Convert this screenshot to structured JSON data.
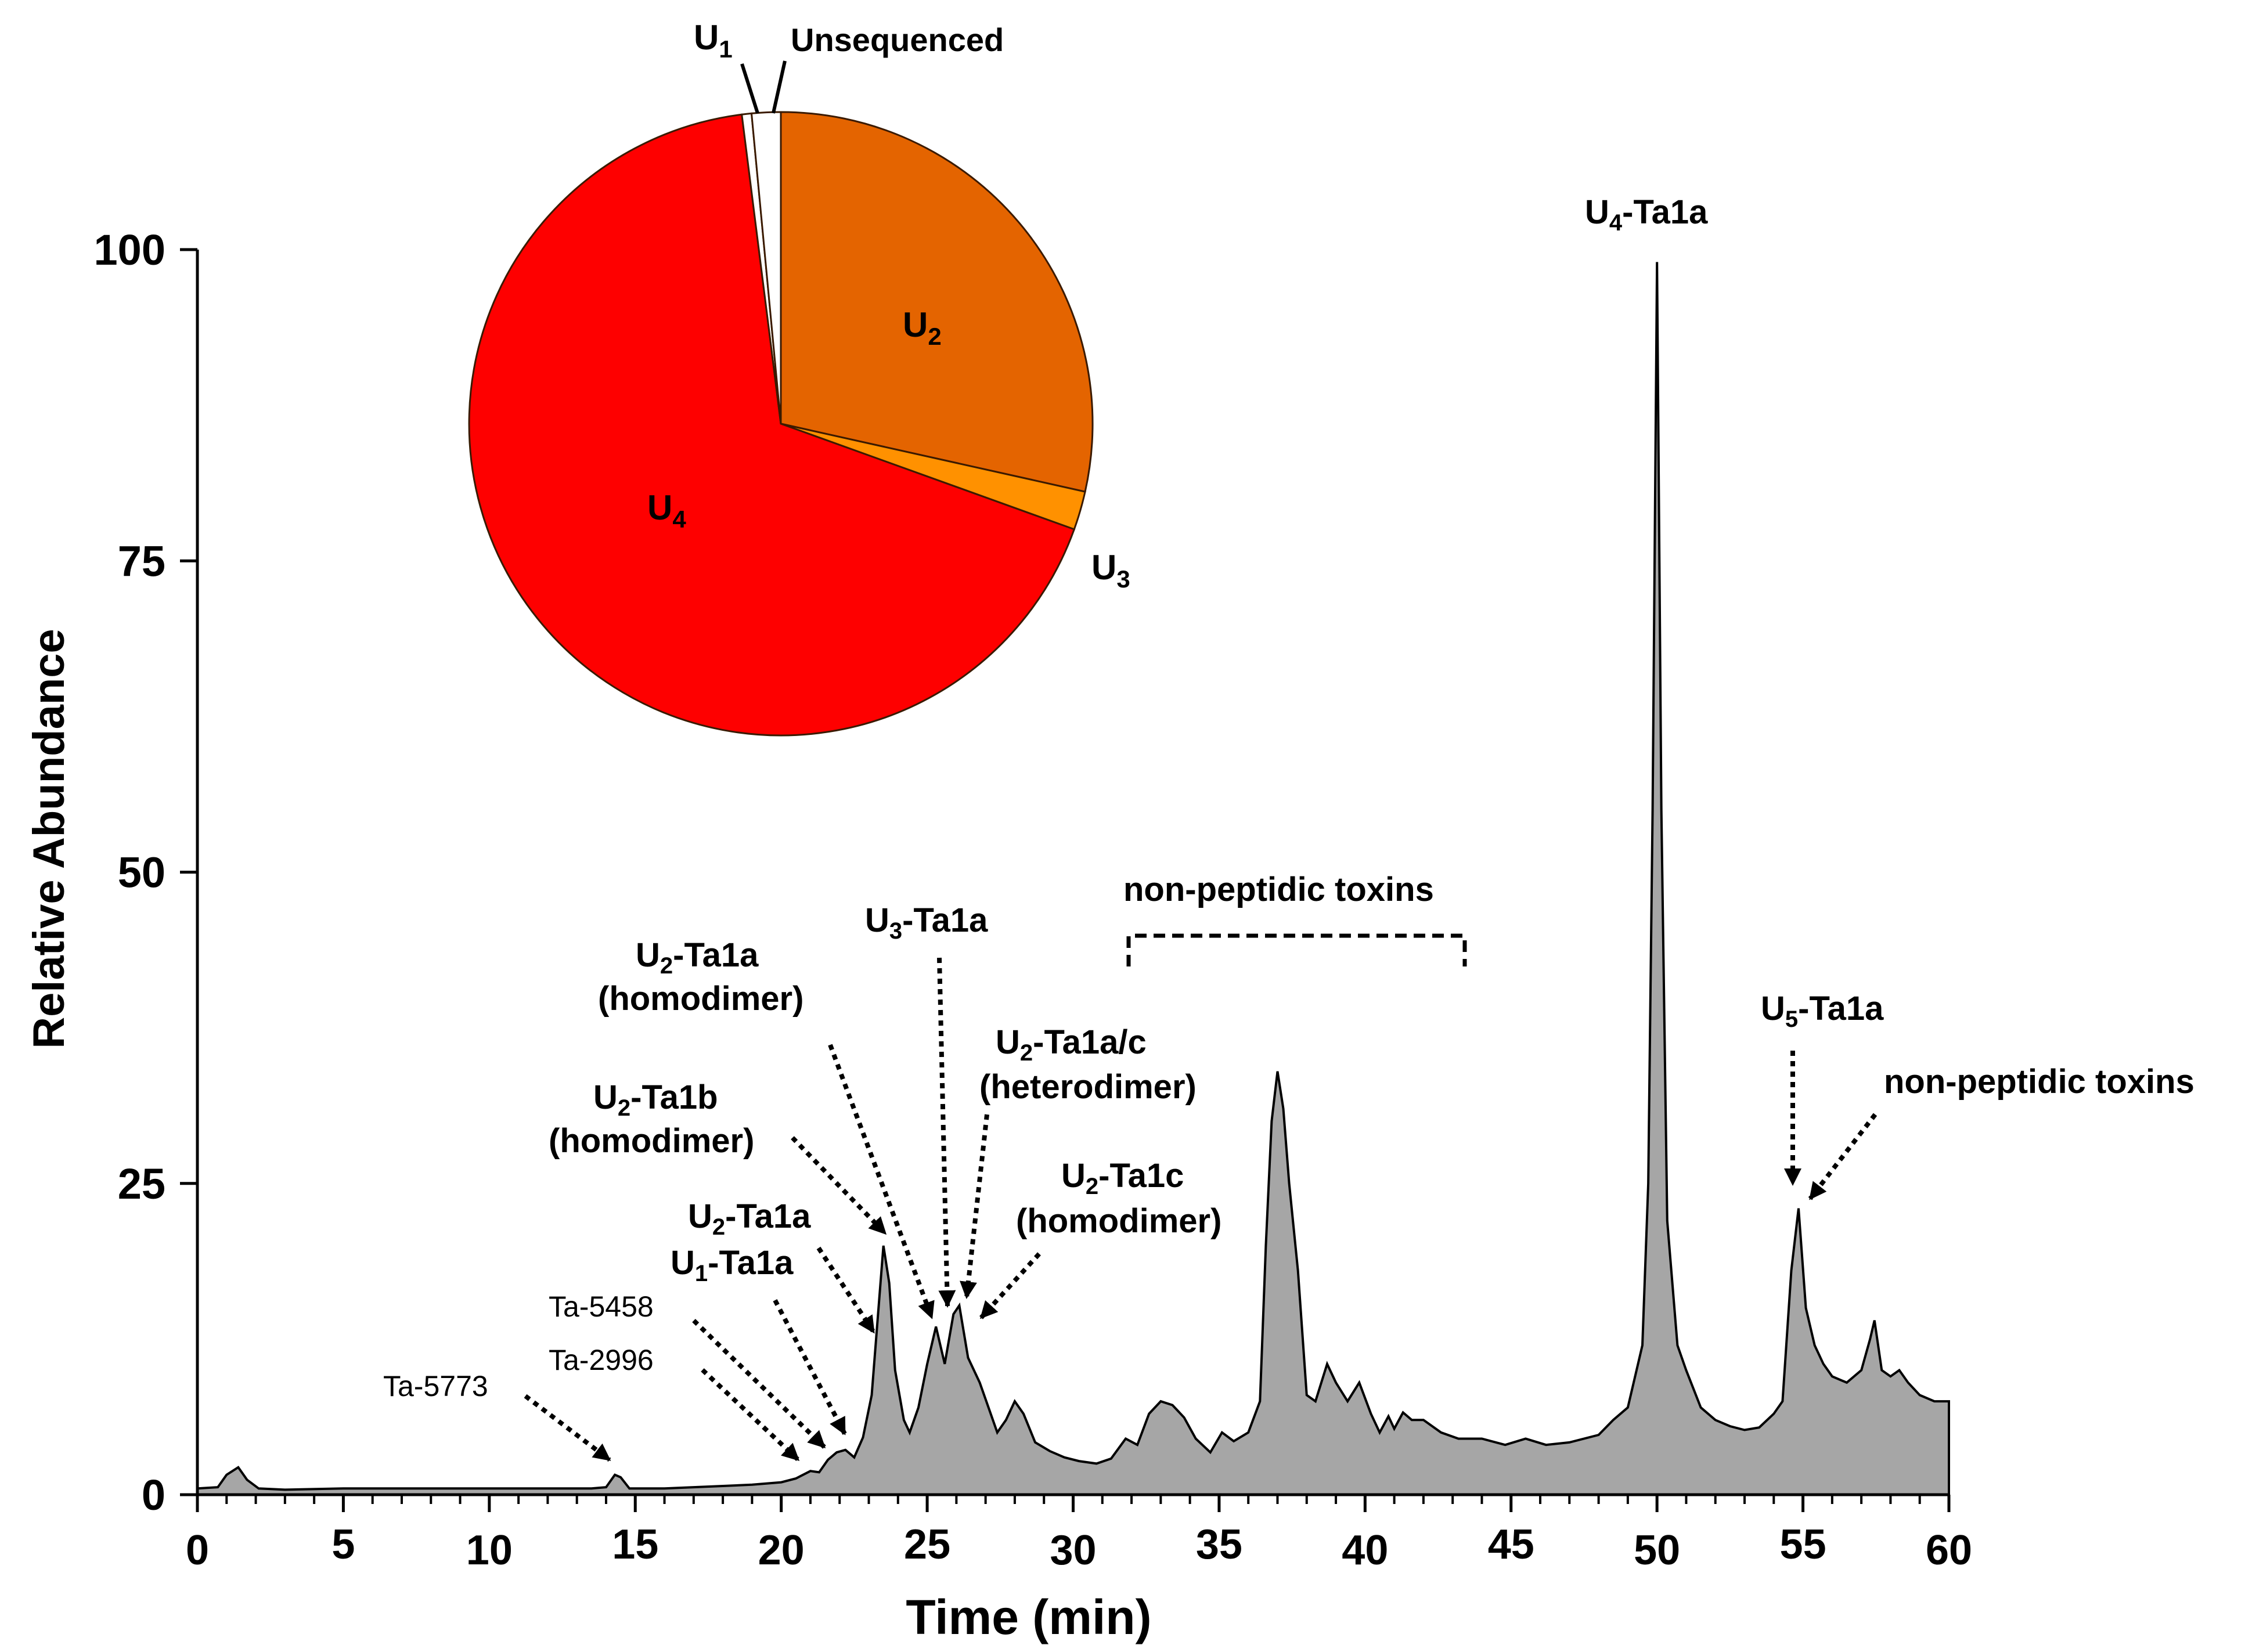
{
  "chart_data": [
    {
      "type": "area",
      "title": "",
      "xlabel": "Time (min)",
      "ylabel": "Relative Abundance",
      "xlim": [
        0,
        60
      ],
      "ylim": [
        0,
        100
      ],
      "x_ticks": [
        "0",
        "5",
        "10",
        "15",
        "20",
        "25",
        "30",
        "35",
        "40",
        "45",
        "50",
        "55",
        "60"
      ],
      "y_ticks": [
        "0",
        "25",
        "50",
        "75",
        "100"
      ],
      "fill_color": "#a6a6a6",
      "series": [
        {
          "name": "chromatogram",
          "points": [
            [
              0,
              0.5
            ],
            [
              0.7,
              0.6
            ],
            [
              1.0,
              1.6
            ],
            [
              1.4,
              2.2
            ],
            [
              1.7,
              1.2
            ],
            [
              2.1,
              0.5
            ],
            [
              3.0,
              0.4
            ],
            [
              5,
              0.5
            ],
            [
              10,
              0.5
            ],
            [
              13.5,
              0.5
            ],
            [
              14.0,
              0.6
            ],
            [
              14.3,
              1.6
            ],
            [
              14.5,
              1.4
            ],
            [
              14.8,
              0.5
            ],
            [
              16,
              0.5
            ],
            [
              18,
              0.7
            ],
            [
              19,
              0.8
            ],
            [
              20,
              1.0
            ],
            [
              20.5,
              1.3
            ],
            [
              21,
              1.9
            ],
            [
              21.3,
              1.8
            ],
            [
              21.6,
              2.8
            ],
            [
              21.9,
              3.4
            ],
            [
              22.2,
              3.6
            ],
            [
              22.5,
              3.0
            ],
            [
              22.8,
              4.6
            ],
            [
              23.1,
              8.0
            ],
            [
              23.3,
              14.0
            ],
            [
              23.5,
              20.0
            ],
            [
              23.7,
              17.0
            ],
            [
              23.9,
              10.0
            ],
            [
              24.2,
              6.0
            ],
            [
              24.4,
              5.0
            ],
            [
              24.7,
              7.0
            ],
            [
              25.0,
              10.5
            ],
            [
              25.3,
              13.5
            ],
            [
              25.6,
              10.5
            ],
            [
              25.9,
              14.5
            ],
            [
              26.1,
              15.2
            ],
            [
              26.4,
              11.0
            ],
            [
              26.8,
              9.0
            ],
            [
              27.1,
              7.0
            ],
            [
              27.4,
              5.0
            ],
            [
              27.7,
              6.0
            ],
            [
              28.0,
              7.5
            ],
            [
              28.3,
              6.5
            ],
            [
              28.7,
              4.2
            ],
            [
              29.2,
              3.5
            ],
            [
              29.7,
              3.0
            ],
            [
              30.2,
              2.7
            ],
            [
              30.8,
              2.5
            ],
            [
              31.3,
              2.9
            ],
            [
              31.8,
              4.5
            ],
            [
              32.2,
              4.0
            ],
            [
              32.6,
              6.5
            ],
            [
              33.0,
              7.5
            ],
            [
              33.4,
              7.2
            ],
            [
              33.8,
              6.2
            ],
            [
              34.2,
              4.5
            ],
            [
              34.7,
              3.4
            ],
            [
              35.1,
              5.0
            ],
            [
              35.5,
              4.3
            ],
            [
              36.0,
              5.0
            ],
            [
              36.4,
              7.5
            ],
            [
              36.6,
              20.0
            ],
            [
              36.8,
              30.0
            ],
            [
              37.0,
              34.0
            ],
            [
              37.2,
              31.0
            ],
            [
              37.4,
              25.0
            ],
            [
              37.7,
              18.0
            ],
            [
              38.0,
              8.0
            ],
            [
              38.3,
              7.5
            ],
            [
              38.7,
              10.5
            ],
            [
              39.0,
              9.0
            ],
            [
              39.4,
              7.5
            ],
            [
              39.8,
              9.0
            ],
            [
              40.2,
              6.5
            ],
            [
              40.5,
              5.0
            ],
            [
              40.8,
              6.3
            ],
            [
              41.0,
              5.3
            ],
            [
              41.3,
              6.6
            ],
            [
              41.6,
              6.0
            ],
            [
              42.0,
              6.0
            ],
            [
              42.6,
              5.0
            ],
            [
              43.2,
              4.5
            ],
            [
              44.0,
              4.5
            ],
            [
              44.8,
              4.0
            ],
            [
              45.5,
              4.5
            ],
            [
              46.2,
              4.0
            ],
            [
              47.0,
              4.2
            ],
            [
              48.0,
              4.8
            ],
            [
              48.5,
              6.0
            ],
            [
              49.0,
              7.0
            ],
            [
              49.5,
              12.0
            ],
            [
              49.7,
              25.0
            ],
            [
              49.85,
              55.0
            ],
            [
              50.0,
              99.0
            ],
            [
              50.15,
              55.0
            ],
            [
              50.35,
              22.0
            ],
            [
              50.7,
              12.0
            ],
            [
              51.0,
              10.0
            ],
            [
              51.5,
              7.0
            ],
            [
              52.0,
              6.0
            ],
            [
              52.5,
              5.5
            ],
            [
              53.0,
              5.2
            ],
            [
              53.5,
              5.4
            ],
            [
              54.0,
              6.5
            ],
            [
              54.3,
              7.5
            ],
            [
              54.6,
              18.0
            ],
            [
              54.85,
              23.0
            ],
            [
              55.1,
              15.0
            ],
            [
              55.4,
              12.0
            ],
            [
              55.7,
              10.5
            ],
            [
              56.0,
              9.5
            ],
            [
              56.5,
              9.0
            ],
            [
              57.0,
              10.0
            ],
            [
              57.3,
              12.5
            ],
            [
              57.45,
              14.0
            ],
            [
              57.7,
              10.0
            ],
            [
              58.0,
              9.5
            ],
            [
              58.3,
              10.0
            ],
            [
              58.6,
              9.0
            ],
            [
              59.0,
              8.0
            ],
            [
              59.5,
              7.5
            ],
            [
              60.0,
              7.5
            ]
          ]
        }
      ],
      "annotations": [
        {
          "label": "Ta-5773",
          "bold": false,
          "arrow_to": [
            14.3,
            1.8
          ]
        },
        {
          "label": "Ta-2996",
          "bold": false,
          "arrow_to": [
            20.6,
            1.3
          ]
        },
        {
          "label": "Ta-5458",
          "bold": false,
          "arrow_to": [
            21.5,
            1.9
          ]
        },
        {
          "label_main": "U",
          "label_sub": "1",
          "label_rest": "-Ta1a",
          "bold": true,
          "arrow_to": [
            22.2,
            3.6
          ]
        },
        {
          "label_main": "U",
          "label_sub": "2",
          "label_rest": "-Ta1a",
          "bold": true,
          "arrow_to": [
            23.1,
            8.0
          ]
        },
        {
          "label_main": "U",
          "label_sub": "2",
          "label_rest": "-Ta1b",
          "line2": "(homodimer)",
          "bold": true,
          "arrow_to": [
            23.5,
            20.0
          ]
        },
        {
          "label_main": "U",
          "label_sub": "2",
          "label_rest": "-Ta1a",
          "line2": "(homodimer)",
          "bold": true,
          "arrow_to": [
            25.2,
            14.0
          ]
        },
        {
          "label_main": "U",
          "label_sub": "3",
          "label_rest": "-Ta1a",
          "bold": true,
          "arrow_to": [
            25.8,
            15.0
          ]
        },
        {
          "label_main": "U",
          "label_sub": "2",
          "label_rest": "-Ta1a/c",
          "line2": "(heterodimer)",
          "bold": true,
          "arrow_to": [
            26.1,
            15.2
          ]
        },
        {
          "label_main": "U",
          "label_sub": "2",
          "label_rest": "-Ta1c",
          "line2": "(homodimer)",
          "bold": true,
          "arrow_to": [
            26.6,
            14.0
          ]
        },
        {
          "label": "non-peptidic toxins",
          "bold": true,
          "range": [
            31.8,
            43.1
          ]
        },
        {
          "label_main": "U",
          "label_sub": "4",
          "label_rest": "-Ta1a",
          "bold": true,
          "peak_x": 50.0
        },
        {
          "label_main": "U",
          "label_sub": "5",
          "label_rest": "-Ta1a",
          "bold": true,
          "arrow_to": [
            54.8,
            25.0
          ]
        },
        {
          "label": "non-peptidic toxins",
          "bold": true,
          "arrow_to": [
            55.3,
            24.0
          ]
        }
      ]
    },
    {
      "type": "pie",
      "title": "",
      "start_angle_deg": 0,
      "direction": "clockwise",
      "slices": [
        {
          "name": "U2",
          "label_main": "U",
          "label_sub": "2",
          "value": 28.5,
          "color": "#e46400"
        },
        {
          "name": "U3",
          "label_main": "U",
          "label_sub": "3",
          "value": 2.0,
          "color": "#ff9100"
        },
        {
          "name": "U4",
          "label_main": "U",
          "label_sub": "4",
          "value": 67.5,
          "color": "#fe0000"
        },
        {
          "name": "U1",
          "label_main": "U",
          "label_sub": "1",
          "value": 0.5,
          "color": "#ffffff"
        },
        {
          "name": "Unsequenced",
          "label": "Unsequenced",
          "value": 1.5,
          "color": "#ffffff"
        }
      ]
    }
  ]
}
